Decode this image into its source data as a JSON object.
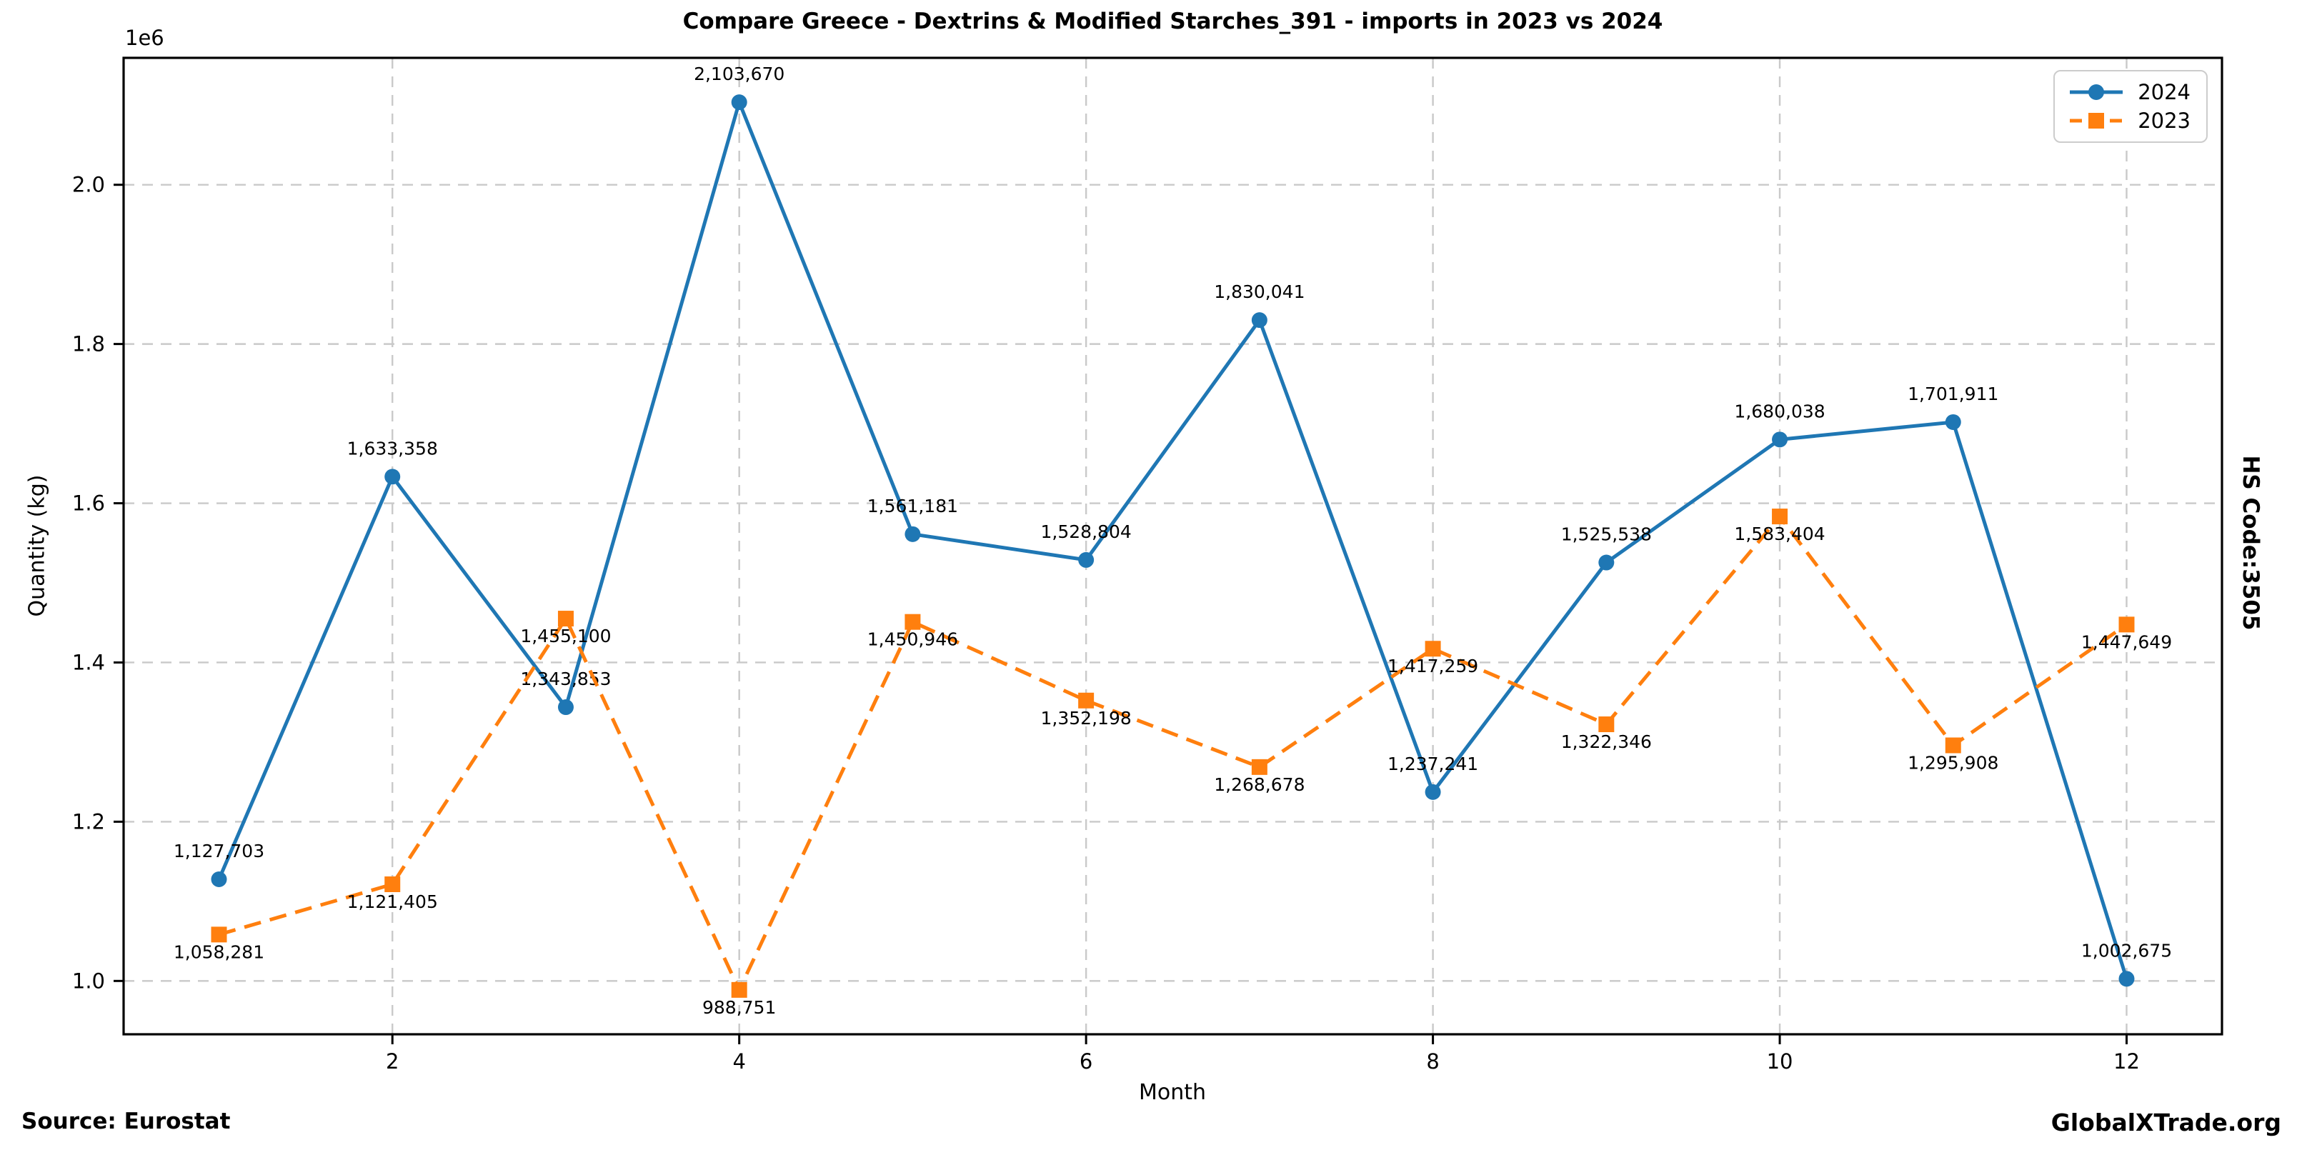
{
  "source_note": "Source: Eurostat",
  "watermark": "GlobalXTrade.org",
  "right_label": "HS Code:3505",
  "chart_data": {
    "type": "line",
    "title": "Compare Greece - Dextrins & Modified Starches_391 - imports in 2023 vs 2024",
    "xlabel": "Month",
    "ylabel": "Quantity (kg)",
    "y_offset_text": "1e6",
    "x": [
      1,
      2,
      3,
      4,
      5,
      6,
      7,
      8,
      9,
      10,
      11,
      12
    ],
    "x_ticks": [
      2,
      4,
      6,
      8,
      10,
      12
    ],
    "y_ticks": [
      1000000,
      1200000,
      1400000,
      1600000,
      1800000,
      2000000
    ],
    "y_tick_labels": [
      "1.0",
      "1.2",
      "1.4",
      "1.6",
      "1.8",
      "2.0"
    ],
    "xlim": [
      0.45,
      12.55
    ],
    "ylim": [
      933005,
      2159416
    ],
    "grid": true,
    "grid_color": "#c9c9c9",
    "legend_position": "upper right",
    "series": [
      {
        "name": "2024",
        "color": "#1f77b4",
        "line_style": "solid",
        "marker": "circle",
        "values": [
          1127703,
          1633358,
          1343853,
          2103670,
          1561181,
          1528804,
          1830041,
          1237241,
          1525538,
          1680038,
          1701911,
          1002675
        ],
        "labels": [
          "1,127,703",
          "1,633,358",
          "1,343,853",
          "2,103,670",
          "1,561,181",
          "1,528,804",
          "1,830,041",
          "1,237,241",
          "1,525,538",
          "1,680,038",
          "1,701,911",
          "1,002,675"
        ]
      },
      {
        "name": "2023",
        "color": "#ff7f0e",
        "line_style": "dashed",
        "marker": "square",
        "values": [
          1058281,
          1121405,
          1455100,
          988751,
          1450946,
          1352198,
          1268678,
          1417259,
          1322346,
          1583404,
          1295908,
          1447649
        ],
        "labels": [
          "1,058,281",
          "1,121,405",
          "1,455,100",
          "988,751",
          "1,450,946",
          "1,352,198",
          "1,268,678",
          "1,417,259",
          "1,322,346",
          "1,583,404",
          "1,295,908",
          "1,447,649"
        ]
      }
    ]
  }
}
